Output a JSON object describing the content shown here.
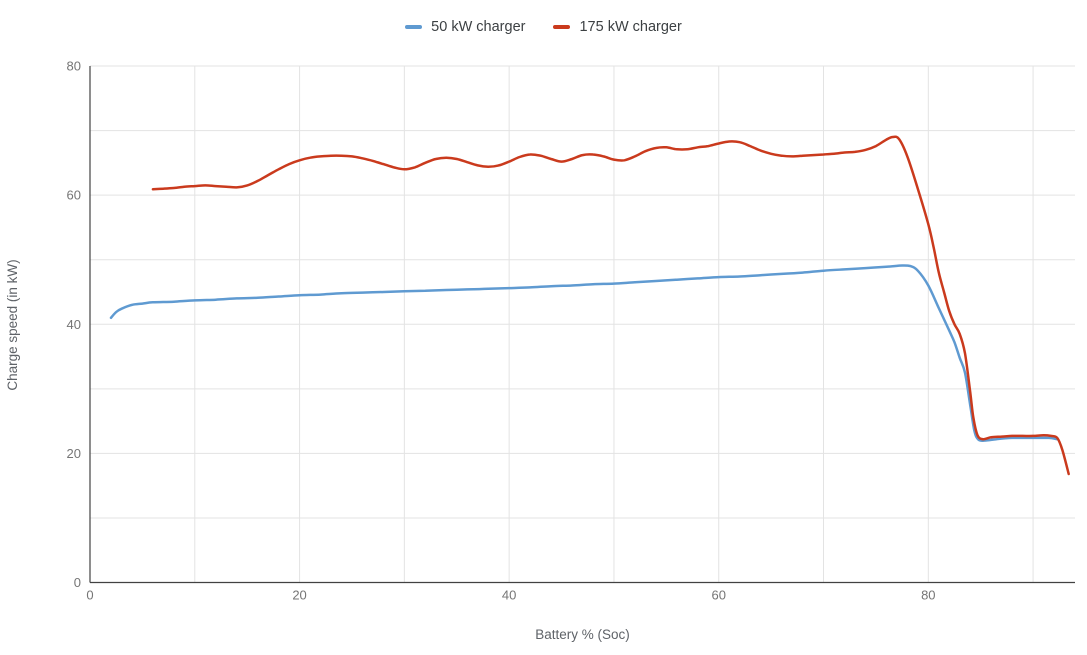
{
  "chart_data": {
    "type": "line",
    "title": "",
    "xlabel": "Battery % (Soc)",
    "ylabel": "Charge speed (in kW)",
    "xlim": [
      0,
      94
    ],
    "ylim": [
      0,
      80
    ],
    "x_tick_labels": [
      0,
      20,
      40,
      60,
      80
    ],
    "y_tick_labels": [
      0,
      20,
      40,
      60,
      80
    ],
    "grid": true,
    "grid_step": 10,
    "legend_position": "top-center",
    "series": [
      {
        "name": "50 kW charger",
        "color": "#5f9ad1",
        "points": [
          [
            2,
            41.0
          ],
          [
            2.5,
            41.9
          ],
          [
            3,
            42.4
          ],
          [
            4,
            43.0
          ],
          [
            5,
            43.2
          ],
          [
            6,
            43.4
          ],
          [
            8,
            43.5
          ],
          [
            10,
            43.7
          ],
          [
            12,
            43.8
          ],
          [
            14,
            44.0
          ],
          [
            16,
            44.1
          ],
          [
            18,
            44.3
          ],
          [
            20,
            44.5
          ],
          [
            22,
            44.6
          ],
          [
            24,
            44.8
          ],
          [
            26,
            44.9
          ],
          [
            28,
            45.0
          ],
          [
            30,
            45.1
          ],
          [
            32,
            45.2
          ],
          [
            34,
            45.3
          ],
          [
            36,
            45.4
          ],
          [
            38,
            45.5
          ],
          [
            40,
            45.6
          ],
          [
            42,
            45.7
          ],
          [
            44,
            45.9
          ],
          [
            46,
            46.0
          ],
          [
            48,
            46.2
          ],
          [
            50,
            46.3
          ],
          [
            52,
            46.5
          ],
          [
            54,
            46.7
          ],
          [
            56,
            46.9
          ],
          [
            58,
            47.1
          ],
          [
            60,
            47.3
          ],
          [
            62,
            47.4
          ],
          [
            64,
            47.6
          ],
          [
            66,
            47.8
          ],
          [
            68,
            48.0
          ],
          [
            70,
            48.3
          ],
          [
            72,
            48.5
          ],
          [
            74,
            48.7
          ],
          [
            76,
            48.9
          ],
          [
            77.5,
            49.1
          ],
          [
            78.3,
            49.0
          ],
          [
            79,
            48.3
          ],
          [
            80,
            46.0
          ],
          [
            81,
            42.5
          ],
          [
            82,
            39.0
          ],
          [
            82.5,
            37.2
          ],
          [
            83,
            34.8
          ],
          [
            83.5,
            32.5
          ],
          [
            84,
            27.5
          ],
          [
            84.4,
            23.5
          ],
          [
            84.8,
            22.1
          ],
          [
            85.5,
            22.0
          ],
          [
            86.5,
            22.2
          ],
          [
            88,
            22.4
          ],
          [
            90,
            22.4
          ],
          [
            91.5,
            22.4
          ],
          [
            92.3,
            22.2
          ]
        ]
      },
      {
        "name": "175 kW charger",
        "color": "#ca3a1d",
        "points": [
          [
            6,
            60.9
          ],
          [
            7,
            61.0
          ],
          [
            8,
            61.1
          ],
          [
            9,
            61.3
          ],
          [
            10,
            61.4
          ],
          [
            11,
            61.5
          ],
          [
            12,
            61.4
          ],
          [
            13,
            61.3
          ],
          [
            14,
            61.2
          ],
          [
            15,
            61.5
          ],
          [
            16,
            62.2
          ],
          [
            17,
            63.1
          ],
          [
            18,
            64.0
          ],
          [
            19,
            64.8
          ],
          [
            20,
            65.4
          ],
          [
            21,
            65.8
          ],
          [
            22,
            66.0
          ],
          [
            23,
            66.1
          ],
          [
            24,
            66.1
          ],
          [
            25,
            66.0
          ],
          [
            26,
            65.7
          ],
          [
            27,
            65.3
          ],
          [
            28,
            64.8
          ],
          [
            29,
            64.3
          ],
          [
            30,
            64.0
          ],
          [
            31,
            64.3
          ],
          [
            32,
            65.0
          ],
          [
            33,
            65.6
          ],
          [
            34,
            65.8
          ],
          [
            35,
            65.6
          ],
          [
            36,
            65.1
          ],
          [
            37,
            64.6
          ],
          [
            38,
            64.4
          ],
          [
            39,
            64.6
          ],
          [
            40,
            65.2
          ],
          [
            41,
            65.9
          ],
          [
            42,
            66.3
          ],
          [
            43,
            66.1
          ],
          [
            44,
            65.6
          ],
          [
            45,
            65.2
          ],
          [
            46,
            65.6
          ],
          [
            47,
            66.2
          ],
          [
            48,
            66.3
          ],
          [
            49,
            66.0
          ],
          [
            50,
            65.5
          ],
          [
            51,
            65.4
          ],
          [
            52,
            66.0
          ],
          [
            53,
            66.8
          ],
          [
            54,
            67.3
          ],
          [
            55,
            67.4
          ],
          [
            56,
            67.1
          ],
          [
            57,
            67.1
          ],
          [
            58,
            67.4
          ],
          [
            59,
            67.6
          ],
          [
            60,
            68.0
          ],
          [
            61,
            68.3
          ],
          [
            62,
            68.2
          ],
          [
            63,
            67.6
          ],
          [
            64,
            66.9
          ],
          [
            65,
            66.4
          ],
          [
            66,
            66.1
          ],
          [
            67,
            66.0
          ],
          [
            68,
            66.1
          ],
          [
            69,
            66.2
          ],
          [
            70,
            66.3
          ],
          [
            71,
            66.4
          ],
          [
            72,
            66.6
          ],
          [
            73,
            66.7
          ],
          [
            74,
            67.0
          ],
          [
            75,
            67.6
          ],
          [
            76,
            68.6
          ],
          [
            76.6,
            69.0
          ],
          [
            77.2,
            68.7
          ],
          [
            78,
            66.0
          ],
          [
            79,
            61.0
          ],
          [
            80,
            55.5
          ],
          [
            80.5,
            52.0
          ],
          [
            81,
            48.0
          ],
          [
            81.5,
            45.0
          ],
          [
            82,
            42.0
          ],
          [
            82.5,
            40.0
          ],
          [
            83,
            38.5
          ],
          [
            83.5,
            35.5
          ],
          [
            84,
            29.5
          ],
          [
            84.3,
            25.5
          ],
          [
            84.7,
            22.8
          ],
          [
            85.2,
            22.2
          ],
          [
            86,
            22.5
          ],
          [
            87,
            22.6
          ],
          [
            88,
            22.7
          ],
          [
            89,
            22.7
          ],
          [
            90,
            22.7
          ],
          [
            91,
            22.8
          ],
          [
            91.7,
            22.7
          ],
          [
            92.3,
            22.4
          ],
          [
            92.8,
            20.5
          ],
          [
            93.4,
            16.8
          ]
        ]
      }
    ]
  },
  "colors": {
    "background": "#ffffff",
    "gridline": "#e3e3e3",
    "axis_line": "#424242",
    "tick_label": "#757575",
    "axis_title": "#5f6368",
    "legend_text": "#3c4043"
  }
}
